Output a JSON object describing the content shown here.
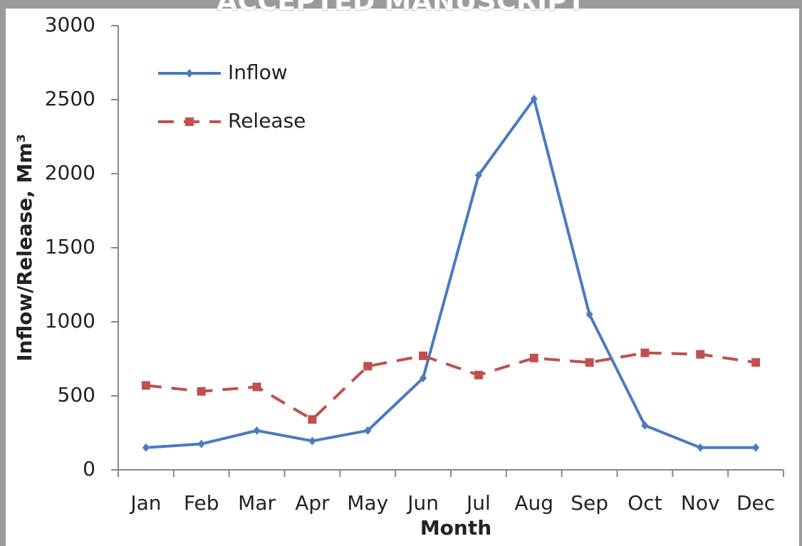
{
  "watermark": "ACCEPTED MANUSCRIPT",
  "chart_data": {
    "type": "line",
    "x_label": "Month",
    "y_label": "Inflow/Release, Mm³",
    "categories": [
      "Jan",
      "Feb",
      "Mar",
      "Apr",
      "May",
      "Jun",
      "Jul",
      "Aug",
      "Sep",
      "Oct",
      "Nov",
      "Dec"
    ],
    "series": [
      {
        "name": "Inflow",
        "color": "#4a7bbf",
        "dash": false,
        "marker": "diamond",
        "values": [
          150,
          175,
          265,
          195,
          265,
          620,
          1990,
          2505,
          1050,
          300,
          150,
          150
        ]
      },
      {
        "name": "Release",
        "color": "#c0504d",
        "dash": true,
        "marker": "square",
        "values": [
          570,
          530,
          560,
          340,
          700,
          770,
          640,
          755,
          725,
          790,
          780,
          725
        ]
      }
    ],
    "ylim": [
      0,
      3000
    ],
    "yticks": [
      0,
      500,
      1000,
      1500,
      2000,
      2500,
      3000
    ],
    "grid": false,
    "legend": "top-left"
  }
}
